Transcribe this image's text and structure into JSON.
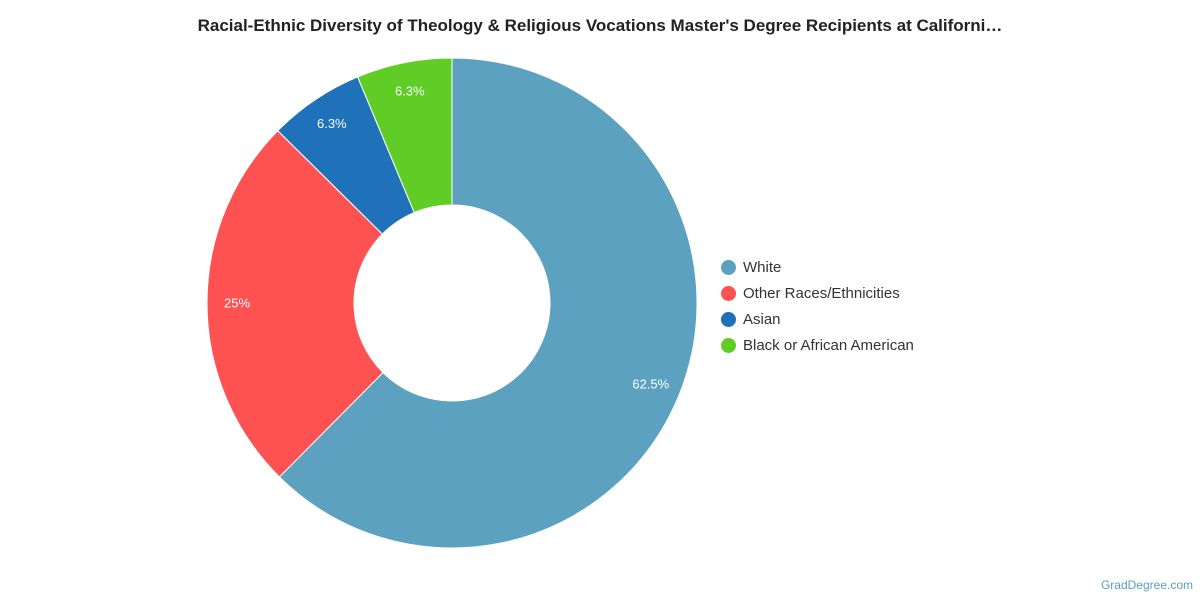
{
  "chart_data": {
    "type": "pie",
    "donut": true,
    "title": "Racial-Ethnic Diversity of Theology & Religious Vocations Master's Degree Recipients at Californi…",
    "categories": [
      "White",
      "Other Races/Ethnicities",
      "Asian",
      "Black or African American"
    ],
    "values": [
      62.5,
      25,
      6.3,
      6.3
    ],
    "labels": [
      "62.5%",
      "25%",
      "6.3%",
      "6.3%"
    ],
    "colors": [
      "#5ca1bf",
      "#fe5152",
      "#1f72b9",
      "#60cd27"
    ],
    "legend_position": "right",
    "start_angle": "top, clockwise"
  },
  "credit": "GradDegree.com"
}
